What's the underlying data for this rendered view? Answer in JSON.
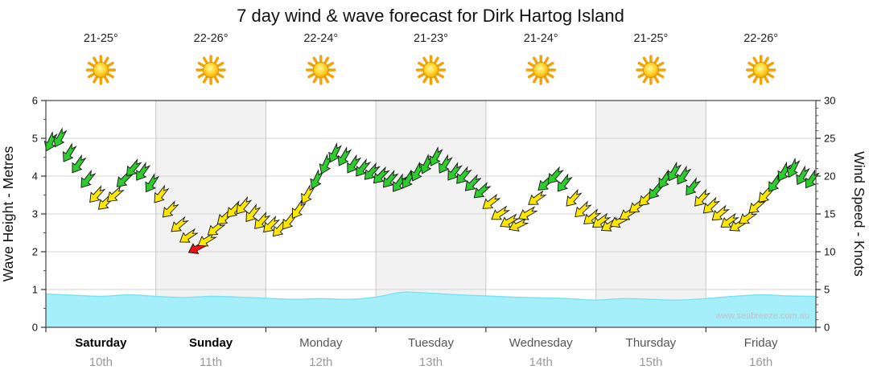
{
  "page": {
    "background": "#ffffff"
  },
  "chart": {
    "title": "7 day wind & wave forecast for Dirk Hartog Island",
    "watermark": "www.seabreeze.com.au",
    "left_axis": {
      "label": "Wave Height - Metres",
      "min": 0,
      "max": 6,
      "major_ticks": [
        0,
        1,
        2,
        3,
        4,
        5,
        6
      ]
    },
    "right_axis": {
      "label": "Wind Speed - Knots",
      "min": 0,
      "max": 30,
      "major_ticks": [
        0,
        5,
        10,
        15,
        20,
        25,
        30
      ]
    },
    "days": [
      {
        "name": "Saturday",
        "date": "10th",
        "temp": "21-25°",
        "weekend": true
      },
      {
        "name": "Sunday",
        "date": "11th",
        "temp": "22-26°",
        "weekend": true
      },
      {
        "name": "Monday",
        "date": "12th",
        "temp": "22-24°",
        "weekend": false
      },
      {
        "name": "Tuesday",
        "date": "13th",
        "temp": "21-23°",
        "weekend": false
      },
      {
        "name": "Wednesday",
        "date": "14th",
        "temp": "21-24°",
        "weekend": false
      },
      {
        "name": "Thursday",
        "date": "15th",
        "temp": "21-25°",
        "weekend": false
      },
      {
        "name": "Friday",
        "date": "16th",
        "temp": "22-26°",
        "weekend": false
      }
    ]
  },
  "chart_data": {
    "type": "area",
    "title": "7 day wind & wave forecast for Dirk Hartog Island",
    "x_unit": "hours",
    "x_range": [
      0,
      168
    ],
    "categories": [
      "Saturday 10th",
      "Sunday 11th",
      "Monday 12th",
      "Tuesday 13th",
      "Wednesday 14th",
      "Thursday 15th",
      "Friday 16th"
    ],
    "left_ylim": [
      0,
      6
    ],
    "right_ylim": [
      0,
      30
    ],
    "grid": true,
    "legend": "none",
    "colors": {
      "wind_strong": "#2ecc2e",
      "wind_moderate": "#ffe800",
      "wind_light": "#ee1111",
      "wave_fill": "#a5effa",
      "wave_edge": "#79e2f2",
      "band_alt": "#f2f2f2",
      "gridline": "#d4d4d4",
      "day_separator": "#c8c8c8"
    },
    "wind_color_rules": {
      "green_min_knots": 18,
      "red_max_knots": 11
    },
    "series": [
      {
        "name": "Wind Speed",
        "type": "wind-arrows",
        "unit": "knots",
        "axis": "right",
        "interval_hours": 2,
        "start_hour": 1,
        "values": [
          24.5,
          25,
          23,
          21.5,
          19.5,
          17.5,
          16.5,
          17.5,
          19.5,
          21,
          20.5,
          19,
          17.5,
          15.5,
          13.5,
          12,
          10.5,
          11.5,
          13,
          14.5,
          15.5,
          16,
          15,
          14,
          13.5,
          13,
          14,
          15.5,
          17.5,
          19.5,
          21.5,
          23,
          22.5,
          21.5,
          21,
          20.5,
          20,
          19.5,
          19,
          19.5,
          20.5,
          21.5,
          22.5,
          21.5,
          20.5,
          20,
          19,
          18,
          16.5,
          15,
          14,
          13.5,
          15,
          17,
          19,
          20,
          19,
          17,
          15.5,
          14.5,
          14,
          13.5,
          14,
          15,
          16,
          17,
          18,
          19.5,
          20.5,
          20,
          18.5,
          17,
          16,
          15,
          14,
          13.5,
          14.5,
          16,
          17.5,
          19,
          20.5,
          21,
          20,
          19.5
        ],
        "directions_deg": [
          205,
          208,
          212,
          215,
          218,
          222,
          226,
          228,
          225,
          220,
          215,
          212,
          218,
          224,
          230,
          236,
          242,
          238,
          232,
          228,
          224,
          220,
          218,
          222,
          225,
          222,
          218,
          214,
          210,
          206,
          204,
          206,
          210,
          214,
          218,
          222,
          224,
          220,
          216,
          212,
          208,
          205,
          208,
          212,
          216,
          220,
          224,
          228,
          232,
          236,
          240,
          244,
          240,
          234,
          228,
          222,
          218,
          222,
          226,
          230,
          234,
          238,
          242,
          238,
          232,
          226,
          220,
          214,
          210,
          214,
          218,
          222,
          226,
          230,
          234,
          238,
          234,
          228,
          222,
          216,
          210,
          206,
          210,
          214
        ]
      },
      {
        "name": "Wave Height",
        "type": "area",
        "unit": "metres",
        "axis": "left",
        "interval_hours": 6,
        "start_hour": 0,
        "values": [
          0.88,
          0.85,
          0.82,
          0.86,
          0.82,
          0.79,
          0.82,
          0.8,
          0.77,
          0.74,
          0.76,
          0.74,
          0.8,
          0.93,
          0.9,
          0.86,
          0.83,
          0.8,
          0.78,
          0.76,
          0.72,
          0.76,
          0.74,
          0.72,
          0.76,
          0.82,
          0.86,
          0.83,
          0.82
        ]
      }
    ]
  }
}
